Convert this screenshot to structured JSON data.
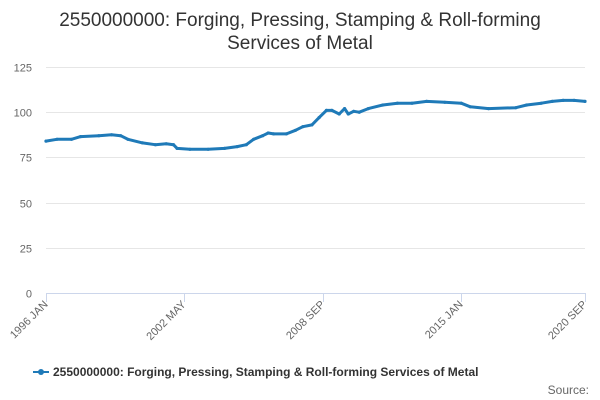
{
  "title_line1": "2550000000: Forging, Pressing, Stamping & Roll-forming",
  "title_line2": "Services of Metal",
  "credit": "Source:",
  "series_color": "#1f7ab8",
  "chart_data": {
    "type": "line",
    "title": "2550000000: Forging, Pressing, Stamping & Roll-forming Services of Metal",
    "xlabel": "",
    "ylabel": "",
    "x_range": [
      "1996-01",
      "2020-09"
    ],
    "x_ticks": [
      "1996 JAN",
      "2002 MAY",
      "2008 SEP",
      "2015 JAN",
      "2020 SEP"
    ],
    "ylim": [
      0,
      125
    ],
    "y_ticks": [
      0,
      25,
      50,
      75,
      100,
      125
    ],
    "grid": true,
    "legend_position": "bottom",
    "series": [
      {
        "name": "2550000000: Forging, Pressing, Stamping & Roll-forming Services of Metal",
        "points": [
          [
            "1996-01",
            84
          ],
          [
            "1996-07",
            85
          ],
          [
            "1997-03",
            85
          ],
          [
            "1997-08",
            86.5
          ],
          [
            "1998-06",
            87
          ],
          [
            "1999-01",
            87.5
          ],
          [
            "1999-06",
            87
          ],
          [
            "1999-10",
            85
          ],
          [
            "2000-06",
            83
          ],
          [
            "2001-01",
            82
          ],
          [
            "2001-07",
            82.5
          ],
          [
            "2001-11",
            82
          ],
          [
            "2002-01",
            80
          ],
          [
            "2002-08",
            79.5
          ],
          [
            "2003-06",
            79.5
          ],
          [
            "2004-03",
            80
          ],
          [
            "2004-10",
            81
          ],
          [
            "2005-03",
            82
          ],
          [
            "2005-07",
            85
          ],
          [
            "2005-12",
            87
          ],
          [
            "2006-03",
            88.5
          ],
          [
            "2006-06",
            88
          ],
          [
            "2007-01",
            88
          ],
          [
            "2007-06",
            90
          ],
          [
            "2007-10",
            92
          ],
          [
            "2008-03",
            93
          ],
          [
            "2008-07",
            97
          ],
          [
            "2008-11",
            101
          ],
          [
            "2009-02",
            101
          ],
          [
            "2009-06",
            99
          ],
          [
            "2009-09",
            102
          ],
          [
            "2009-11",
            99
          ],
          [
            "2010-02",
            100.5
          ],
          [
            "2010-05",
            100
          ],
          [
            "2010-10",
            102
          ],
          [
            "2011-06",
            104
          ],
          [
            "2012-02",
            105
          ],
          [
            "2012-10",
            105
          ],
          [
            "2013-06",
            106
          ],
          [
            "2014-04",
            105.5
          ],
          [
            "2015-01",
            105
          ],
          [
            "2015-06",
            103
          ],
          [
            "2016-04",
            102
          ],
          [
            "2017-07",
            102.5
          ],
          [
            "2018-01",
            104
          ],
          [
            "2018-09",
            105
          ],
          [
            "2019-03",
            106
          ],
          [
            "2019-09",
            106.5
          ],
          [
            "2020-03",
            106.5
          ],
          [
            "2020-09",
            106
          ]
        ]
      }
    ]
  }
}
